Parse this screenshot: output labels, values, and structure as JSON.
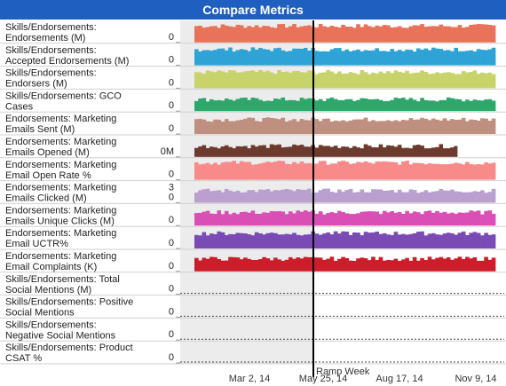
{
  "title": "Compare Metrics",
  "chart_data": {
    "type": "bar",
    "x_axis": {
      "ticks": [
        "Mar 2, 14",
        "May 25, 14",
        "Aug 17, 14",
        "Nov 9, 14"
      ]
    },
    "reference_line": {
      "label": "Ramp Week",
      "x": "May 25, 14"
    },
    "rows": [
      {
        "name": "Skills/Endorsements:\nEndorsements (M)",
        "tick_top": "",
        "tick_bottom": "0",
        "color": "#e8735a",
        "level": 0.85,
        "has_data": true,
        "short": false
      },
      {
        "name": "Skills/Endorsements:\nAccepted Endorsements (M)",
        "tick_top": "",
        "tick_bottom": "0",
        "color": "#2fa3d5",
        "level": 0.82,
        "has_data": true,
        "short": false
      },
      {
        "name": "Skills/Endorsements:\nEndorsers (M)",
        "tick_top": "",
        "tick_bottom": "0",
        "color": "#c8d36b",
        "level": 0.83,
        "has_data": true,
        "short": false
      },
      {
        "name": "Skills/Endorsements: GCO\nCases",
        "tick_top": "",
        "tick_bottom": "0",
        "color": "#2ea86a",
        "level": 0.6,
        "has_data": true,
        "short": false
      },
      {
        "name": "Endorsements: Marketing\nEmails Sent (M)",
        "tick_top": "",
        "tick_bottom": "0",
        "color": "#bf8f80",
        "level": 0.75,
        "has_data": true,
        "short": false
      },
      {
        "name": "Endorsements: Marketing\nEmails Opened (M)",
        "tick_top": "",
        "tick_bottom": "0M",
        "color": "#6e3a2e",
        "level": 0.55,
        "has_data": true,
        "short": true
      },
      {
        "name": "Endorsements: Marketing\nEmail Open Rate %",
        "tick_top": "",
        "tick_bottom": "0",
        "color": "#f88a8a",
        "level": 0.88,
        "has_data": true,
        "short": false
      },
      {
        "name": "Endorsements: Marketing\nEmails Clicked (M)",
        "tick_top": "3",
        "tick_bottom": "0",
        "color": "#b9a0cf",
        "level": 0.62,
        "has_data": true,
        "short": false
      },
      {
        "name": "Endorsements: Marketing\nEmails Unique Clicks (M)",
        "tick_top": "",
        "tick_bottom": "0",
        "color": "#d94fb5",
        "level": 0.68,
        "has_data": true,
        "short": false
      },
      {
        "name": "Endorsements: Marketing\nEmail UCTR%",
        "tick_top": "",
        "tick_bottom": "0",
        "color": "#7b4bb5",
        "level": 0.78,
        "has_data": true,
        "short": false
      },
      {
        "name": "Endorsements: Marketing\nEmail Complaints (K)",
        "tick_top": "",
        "tick_bottom": "0",
        "color": "#cc1e2a",
        "level": 0.65,
        "has_data": true,
        "short": false
      },
      {
        "name": "Skills/Endorsements: Total\nSocial Mentions (M)",
        "tick_top": "",
        "tick_bottom": "0",
        "color": "#555555",
        "level": 0,
        "has_data": false,
        "short": false
      },
      {
        "name": "Skills/Endorsements: Positive\nSocial Mentions",
        "tick_top": "",
        "tick_bottom": "0",
        "color": "#555555",
        "level": 0,
        "has_data": false,
        "short": false
      },
      {
        "name": "Skills/Endorsements:\nNegative Social Mentions",
        "tick_top": "",
        "tick_bottom": "0",
        "color": "#555555",
        "level": 0,
        "has_data": false,
        "short": false
      },
      {
        "name": "Skills/Endorsements: Product\nCSAT %",
        "tick_top": "",
        "tick_bottom": "0",
        "color": "#555555",
        "level": 0,
        "has_data": false,
        "short": false
      }
    ]
  }
}
